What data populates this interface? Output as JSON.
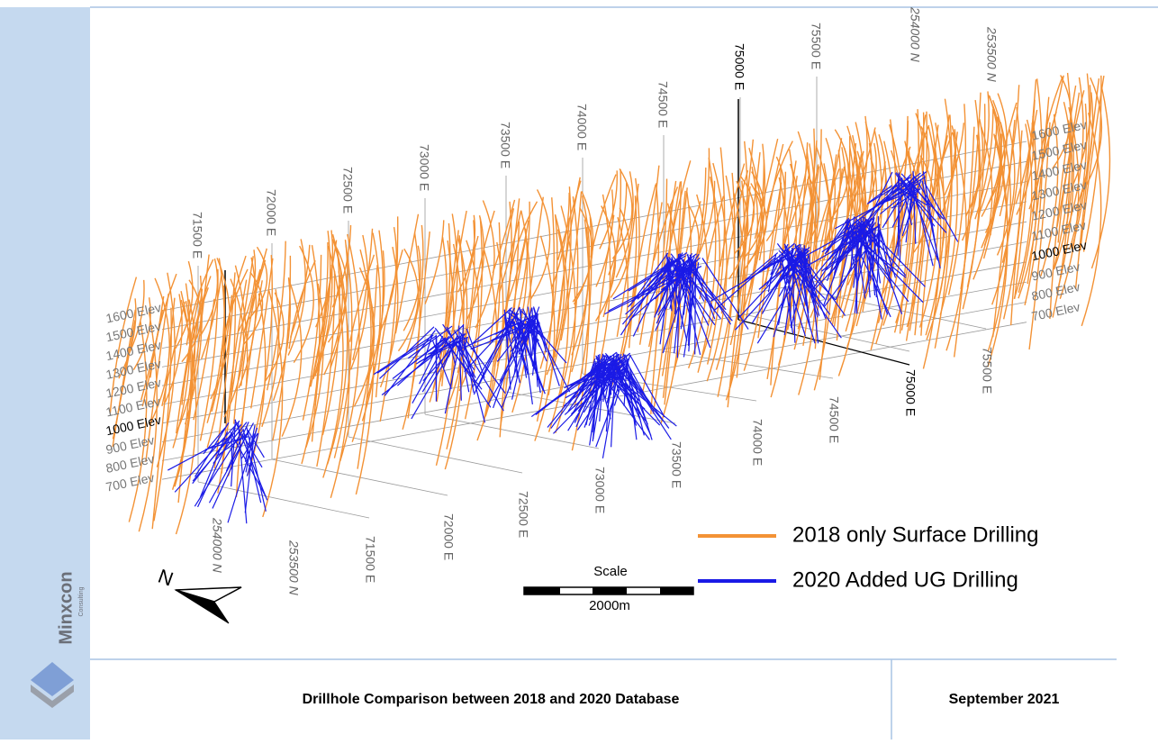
{
  "figure": {
    "elevation_labels_left": [
      "1600 Elev",
      "1500 Elev",
      "1400 Elev",
      "1300 Elev",
      "1200 Elev",
      "1100 Elev",
      "1000 Elev",
      "900 Elev",
      "800 Elev",
      "700 Elev"
    ],
    "elevation_labels_right": [
      "1600 Elev",
      "1500 Elev",
      "1400 Elev",
      "1300 Elev",
      "1200 Elev",
      "1100 Elev",
      "1000 Elev",
      "900 Elev",
      "800 Elev",
      "700 Elev"
    ],
    "easting_labels_top": [
      "71500 E",
      "72000 E",
      "72500 E",
      "73000 E",
      "73500 E",
      "74000 E",
      "74500 E",
      "75000 E",
      "75500 E"
    ],
    "northing_labels_top": [
      "254000 N",
      "253500 N"
    ],
    "easting_labels_bottom": [
      "71500 E",
      "72000 E",
      "72500 E",
      "73000 E",
      "73500 E",
      "74000 E",
      "74500 E",
      "75000 E",
      "75500 E"
    ],
    "northing_labels_bottom": [
      "254000 N",
      "253500 N"
    ],
    "north_arrow": "N",
    "scale": {
      "title": "Scale",
      "length": "2000m"
    },
    "legend": [
      {
        "label": "2018 only Surface Drilling",
        "color": "#f39235"
      },
      {
        "label": "2020 Added UG Drilling",
        "color": "#1a1ae6"
      }
    ]
  },
  "logo": {
    "name": "Minxcon",
    "tagline": "Consulting"
  },
  "footer": {
    "title": "Drillhole Comparison between 2018 and 2020 Database",
    "date": "September 2021"
  }
}
